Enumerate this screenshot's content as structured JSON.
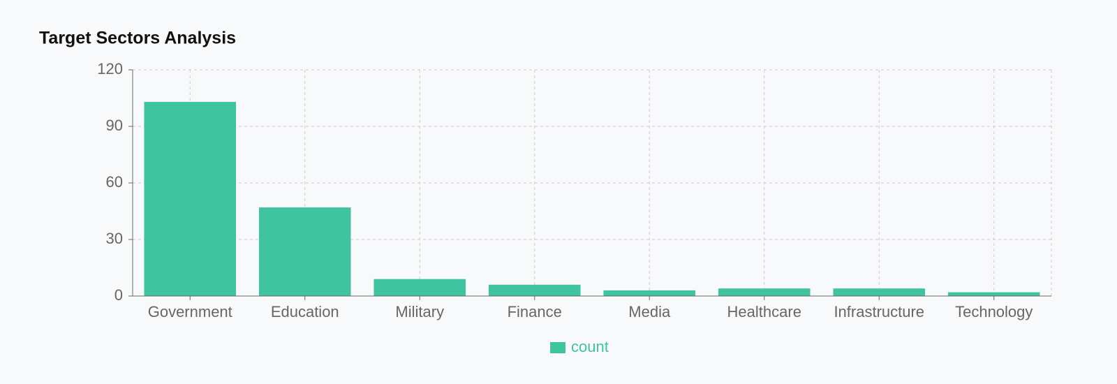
{
  "chart_data": {
    "type": "bar",
    "title": "Target Sectors Analysis",
    "categories": [
      "Government",
      "Education",
      "Military",
      "Finance",
      "Media",
      "Healthcare",
      "Infrastructure",
      "Technology"
    ],
    "series": [
      {
        "name": "count",
        "color": "#40c4a0",
        "values": [
          103,
          47,
          9,
          6,
          3,
          4,
          4,
          2
        ]
      }
    ],
    "ylim": [
      0,
      120
    ],
    "yticks": [
      0,
      30,
      60,
      90,
      120
    ],
    "grid": true,
    "legend": "bottom"
  }
}
